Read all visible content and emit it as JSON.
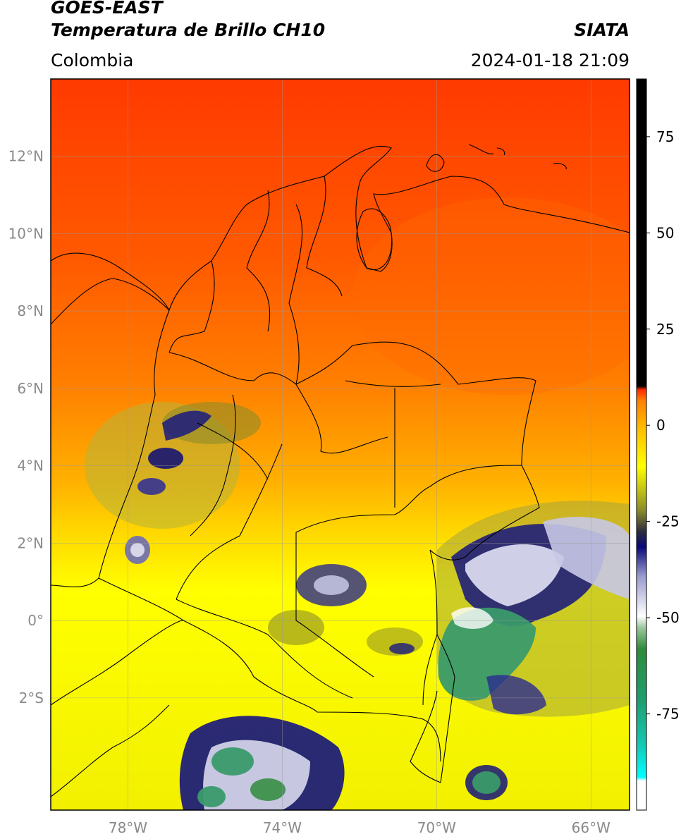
{
  "header": {
    "satellite": "GOES-EAST",
    "product": "Temperatura de Brillo CH10",
    "source": "SIATA",
    "region": "Colombia",
    "datetime": "2024-01-18 21:09"
  },
  "map": {
    "lon_range": [
      -80,
      -65
    ],
    "lat_range": [
      -4.9,
      14.0
    ],
    "lat_ticks": [
      {
        "value": 12,
        "label": "12°N"
      },
      {
        "value": 10,
        "label": "10°N"
      },
      {
        "value": 8,
        "label": "8°N"
      },
      {
        "value": 6,
        "label": "6°N"
      },
      {
        "value": 4,
        "label": "4°N"
      },
      {
        "value": 2,
        "label": "2°N"
      },
      {
        "value": 0,
        "label": "0°"
      },
      {
        "value": -2,
        "label": "2°S"
      }
    ],
    "lon_ticks": [
      {
        "value": -78,
        "label": "78°W"
      },
      {
        "value": -74,
        "label": "74°W"
      },
      {
        "value": -70,
        "label": "70°W"
      },
      {
        "value": -66,
        "label": "66°W"
      }
    ],
    "grid": true
  },
  "colorbar": {
    "min": -100,
    "max": 90,
    "ticks": [
      {
        "value": 75,
        "label": "75"
      },
      {
        "value": 50,
        "label": "50"
      },
      {
        "value": 25,
        "label": "25"
      },
      {
        "value": 0,
        "label": "0"
      },
      {
        "value": -25,
        "label": "-25"
      },
      {
        "value": -50,
        "label": "-50"
      },
      {
        "value": -75,
        "label": "-75"
      }
    ],
    "colors": {
      "above_8": "#000000",
      "red": "#ff2a00",
      "orange": "#ff8c00",
      "yellow": "#ffff00",
      "olive": "#8c8c2a",
      "navy": "#0a0a78",
      "white": "#ffffff",
      "green": "#2e8b3a",
      "teal": "#14c8b4",
      "cyan": "#00ffff"
    }
  }
}
